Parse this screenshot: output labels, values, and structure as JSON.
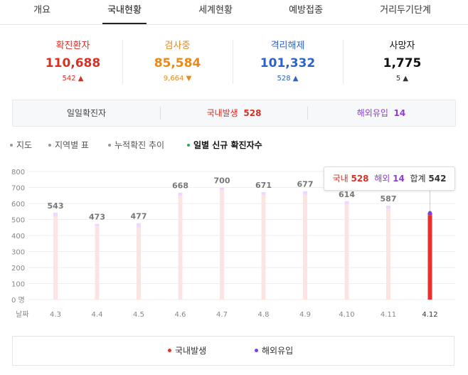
{
  "tabs": [
    "개요",
    "국내현황",
    "세계현황",
    "예방접종",
    "거리두기단계"
  ],
  "stats": [
    {
      "label": "확진환자",
      "value": "110,688",
      "delta": "542",
      "arrow": "▲",
      "color": "#d93025",
      "delta_color": "#d93025"
    },
    {
      "label": "검사중",
      "value": "85,584",
      "delta": "9,664",
      "arrow": "▼",
      "color": "#e8891c",
      "delta_color": "#e8891c"
    },
    {
      "label": "격리해제",
      "value": "101,332",
      "delta": "528",
      "arrow": "▲",
      "color": "#2e62c9",
      "delta_color": "#2e62c9"
    },
    {
      "label": "사망자",
      "value": "1,775",
      "delta": "5",
      "arrow": "▲",
      "color": "#111111",
      "delta_color": "#333333"
    }
  ],
  "daily": {
    "label": "일일확진자",
    "domestic_label": "국내발생",
    "domestic_value": "528",
    "overseas_label": "해외유입",
    "overseas_value": "14"
  },
  "menu": [
    "지도",
    "지역별 표",
    "누적확진 추이",
    "일별 신규 확진자수"
  ],
  "tooltip": {
    "domestic_label": "국내",
    "domestic": "528",
    "overseas_label": "해외",
    "overseas": "14",
    "total_label": "합계",
    "total": "542"
  },
  "legend": {
    "domestic": "국내발생",
    "overseas": "해외유입",
    "domestic_color": "#e5322d",
    "overseas_color": "#7b3fe4"
  },
  "chart_data": {
    "type": "bar",
    "categories": [
      "4.3",
      "4.4",
      "4.5",
      "4.6",
      "4.7",
      "4.8",
      "4.9",
      "4.10",
      "4.11",
      "4.12"
    ],
    "series": [
      {
        "name": "국내발생",
        "values": [
          520,
          457,
          451,
          649,
          683,
          654,
          655,
          595,
          569,
          528
        ]
      },
      {
        "name": "해외유입",
        "values": [
          23,
          16,
          26,
          19,
          17,
          17,
          22,
          19,
          18,
          14
        ]
      }
    ],
    "totals": [
      543,
      473,
      477,
      668,
      700,
      671,
      677,
      614,
      587,
      542
    ],
    "show_total_labels": [
      true,
      true,
      true,
      true,
      true,
      true,
      true,
      true,
      true,
      false
    ],
    "yticks": [
      "0 명",
      "100",
      "200",
      "300",
      "400",
      "500",
      "600",
      "700",
      "800"
    ],
    "ylim": [
      0,
      800
    ],
    "xlabel": "날짜",
    "highlight_index": 9,
    "colors": {
      "domestic": "#e5322d",
      "overseas": "#7b3fe4",
      "domestic_faded": "#fde4e4",
      "overseas_faded": "#ecd9fb",
      "grid": "#eeeeee",
      "axis_text": "#888888",
      "label_text": "#777777"
    }
  }
}
